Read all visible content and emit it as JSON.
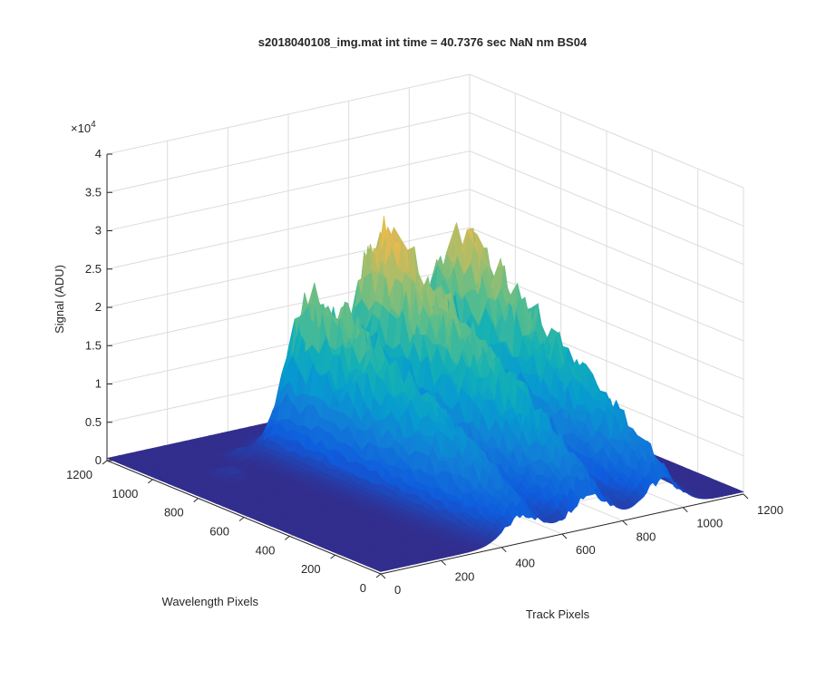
{
  "chart_data": {
    "type": "surface",
    "title": "s2018040108_img.mat int time = 40.7376 sec  NaN nm BS04",
    "xlabel": "Track Pixels",
    "ylabel": "Wavelength Pixels",
    "zlabel": "Signal (ADU)",
    "z_multiplier_label": "×10",
    "z_multiplier_exponent": "4",
    "xlim": [
      0,
      1200
    ],
    "ylim": [
      0,
      1200
    ],
    "zlim": [
      0,
      40000
    ],
    "x_ticks": [
      "0",
      "200",
      "400",
      "600",
      "800",
      "1000",
      "1200"
    ],
    "y_ticks": [
      "0",
      "200",
      "400",
      "600",
      "800",
      "1000",
      "1200"
    ],
    "z_ticks": [
      "0",
      "0.5",
      "1",
      "1.5",
      "2",
      "2.5",
      "3",
      "3.5",
      "4"
    ],
    "grid": true,
    "colormap": "parula",
    "series": [
      {
        "x_center": 470,
        "x_width": 150,
        "peak": 23000
      },
      {
        "x_center": 690,
        "x_width": 160,
        "peak": 29000
      },
      {
        "x_center": 930,
        "x_width": 150,
        "peak": 27000
      }
    ],
    "minor_features": [
      {
        "x_center": 180,
        "y_center": 900,
        "peak": 1000
      },
      {
        "x_center": 300,
        "y_center": 1000,
        "peak": 1200
      }
    ],
    "baseline": 300
  }
}
